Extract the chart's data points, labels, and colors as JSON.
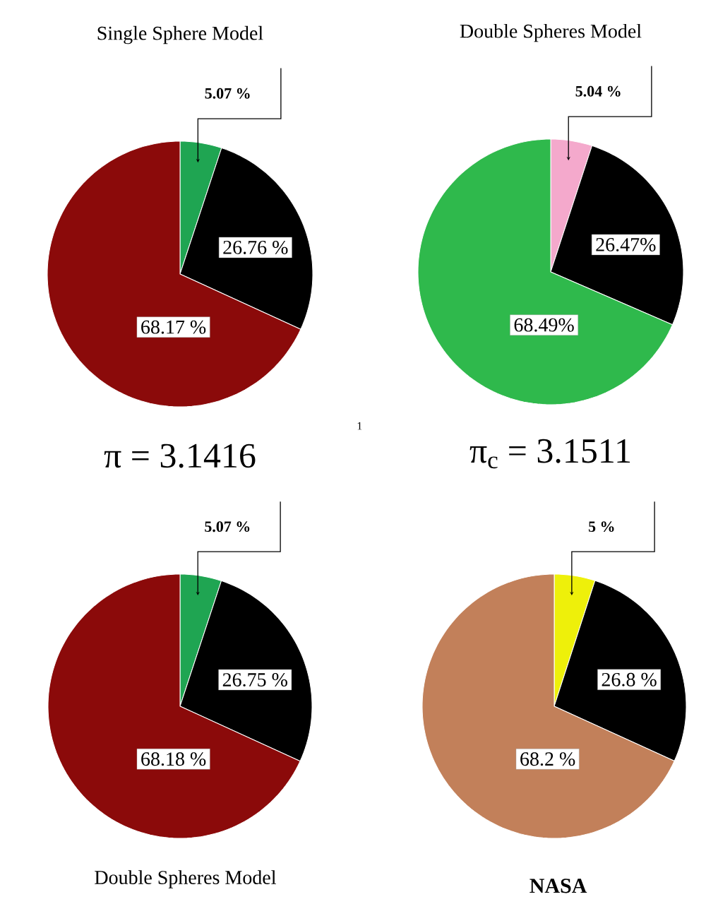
{
  "chart_data": [
    {
      "type": "pie",
      "title": "Single Sphere Model",
      "categories": [
        null,
        null,
        null
      ],
      "values": [
        5.07,
        26.76,
        68.17
      ],
      "colors": [
        "#1fa552",
        "#000000",
        "#8b0a0a"
      ],
      "value_labels": [
        "5.07 %",
        "26.76 %",
        "68.17 %"
      ],
      "annotations": [
        "π = 3.1416"
      ]
    },
    {
      "type": "pie",
      "title": "Double Spheres Model",
      "categories": [
        null,
        null,
        null
      ],
      "values": [
        5.04,
        26.47,
        68.49
      ],
      "colors": [
        "#f4a9cc",
        "#000000",
        "#2fb94c"
      ],
      "value_labels": [
        "5.04 %",
        "26.47%",
        "68.49%"
      ],
      "annotations": [
        "π$_{c}$ = 3.1511",
        "1"
      ]
    },
    {
      "type": "pie",
      "title": "Double Spheres Model",
      "categories": [
        null,
        null,
        null
      ],
      "values": [
        5.07,
        26.75,
        68.18
      ],
      "colors": [
        "#1fa552",
        "#000000",
        "#8b0a0a"
      ],
      "value_labels": [
        "5.07 %",
        "26.75 %",
        "68.18 %"
      ]
    },
    {
      "type": "pie",
      "title": "NASA",
      "categories": [
        null,
        null,
        null
      ],
      "values": [
        5,
        26.8,
        68.2
      ],
      "colors": [
        "#eef00a",
        "#000000",
        "#c2805a"
      ],
      "value_labels": [
        "5 %",
        "26.8 %",
        "68.2 %"
      ]
    }
  ]
}
